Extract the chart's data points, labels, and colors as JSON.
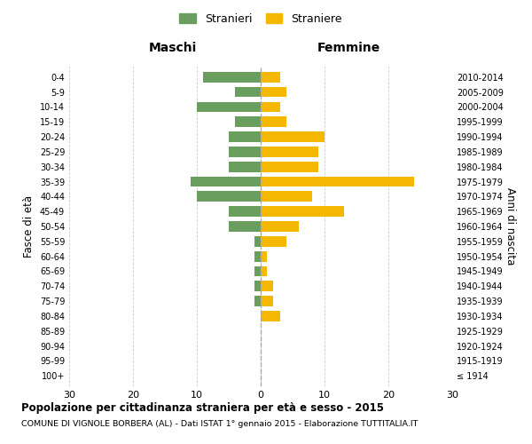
{
  "age_groups": [
    "100+",
    "95-99",
    "90-94",
    "85-89",
    "80-84",
    "75-79",
    "70-74",
    "65-69",
    "60-64",
    "55-59",
    "50-54",
    "45-49",
    "40-44",
    "35-39",
    "30-34",
    "25-29",
    "20-24",
    "15-19",
    "10-14",
    "5-9",
    "0-4"
  ],
  "birth_years": [
    "≤ 1914",
    "1915-1919",
    "1920-1924",
    "1925-1929",
    "1930-1934",
    "1935-1939",
    "1940-1944",
    "1945-1949",
    "1950-1954",
    "1955-1959",
    "1960-1964",
    "1965-1969",
    "1970-1974",
    "1975-1979",
    "1980-1984",
    "1985-1989",
    "1990-1994",
    "1995-1999",
    "2000-2004",
    "2005-2009",
    "2010-2014"
  ],
  "males": [
    0,
    0,
    0,
    0,
    0,
    1,
    1,
    1,
    1,
    1,
    5,
    5,
    10,
    11,
    5,
    5,
    5,
    4,
    10,
    4,
    9
  ],
  "females": [
    0,
    0,
    0,
    0,
    3,
    2,
    2,
    1,
    1,
    4,
    6,
    13,
    8,
    24,
    9,
    9,
    10,
    4,
    3,
    4,
    3
  ],
  "male_color": "#6a9e5e",
  "female_color": "#f5b800",
  "male_label": "Stranieri",
  "female_label": "Straniere",
  "title": "Popolazione per cittadinanza straniera per età e sesso - 2015",
  "subtitle": "COMUNE DI VIGNOLE BORBERA (AL) - Dati ISTAT 1° gennaio 2015 - Elaborazione TUTTITALIA.IT",
  "left_header": "Maschi",
  "right_header": "Femmine",
  "left_axis_label": "Fasce di età",
  "right_axis_label": "Anni di nascita",
  "xlim": 30,
  "bg_color": "#ffffff",
  "grid_color": "#cccccc",
  "centerline_color": "#aaaaaa"
}
